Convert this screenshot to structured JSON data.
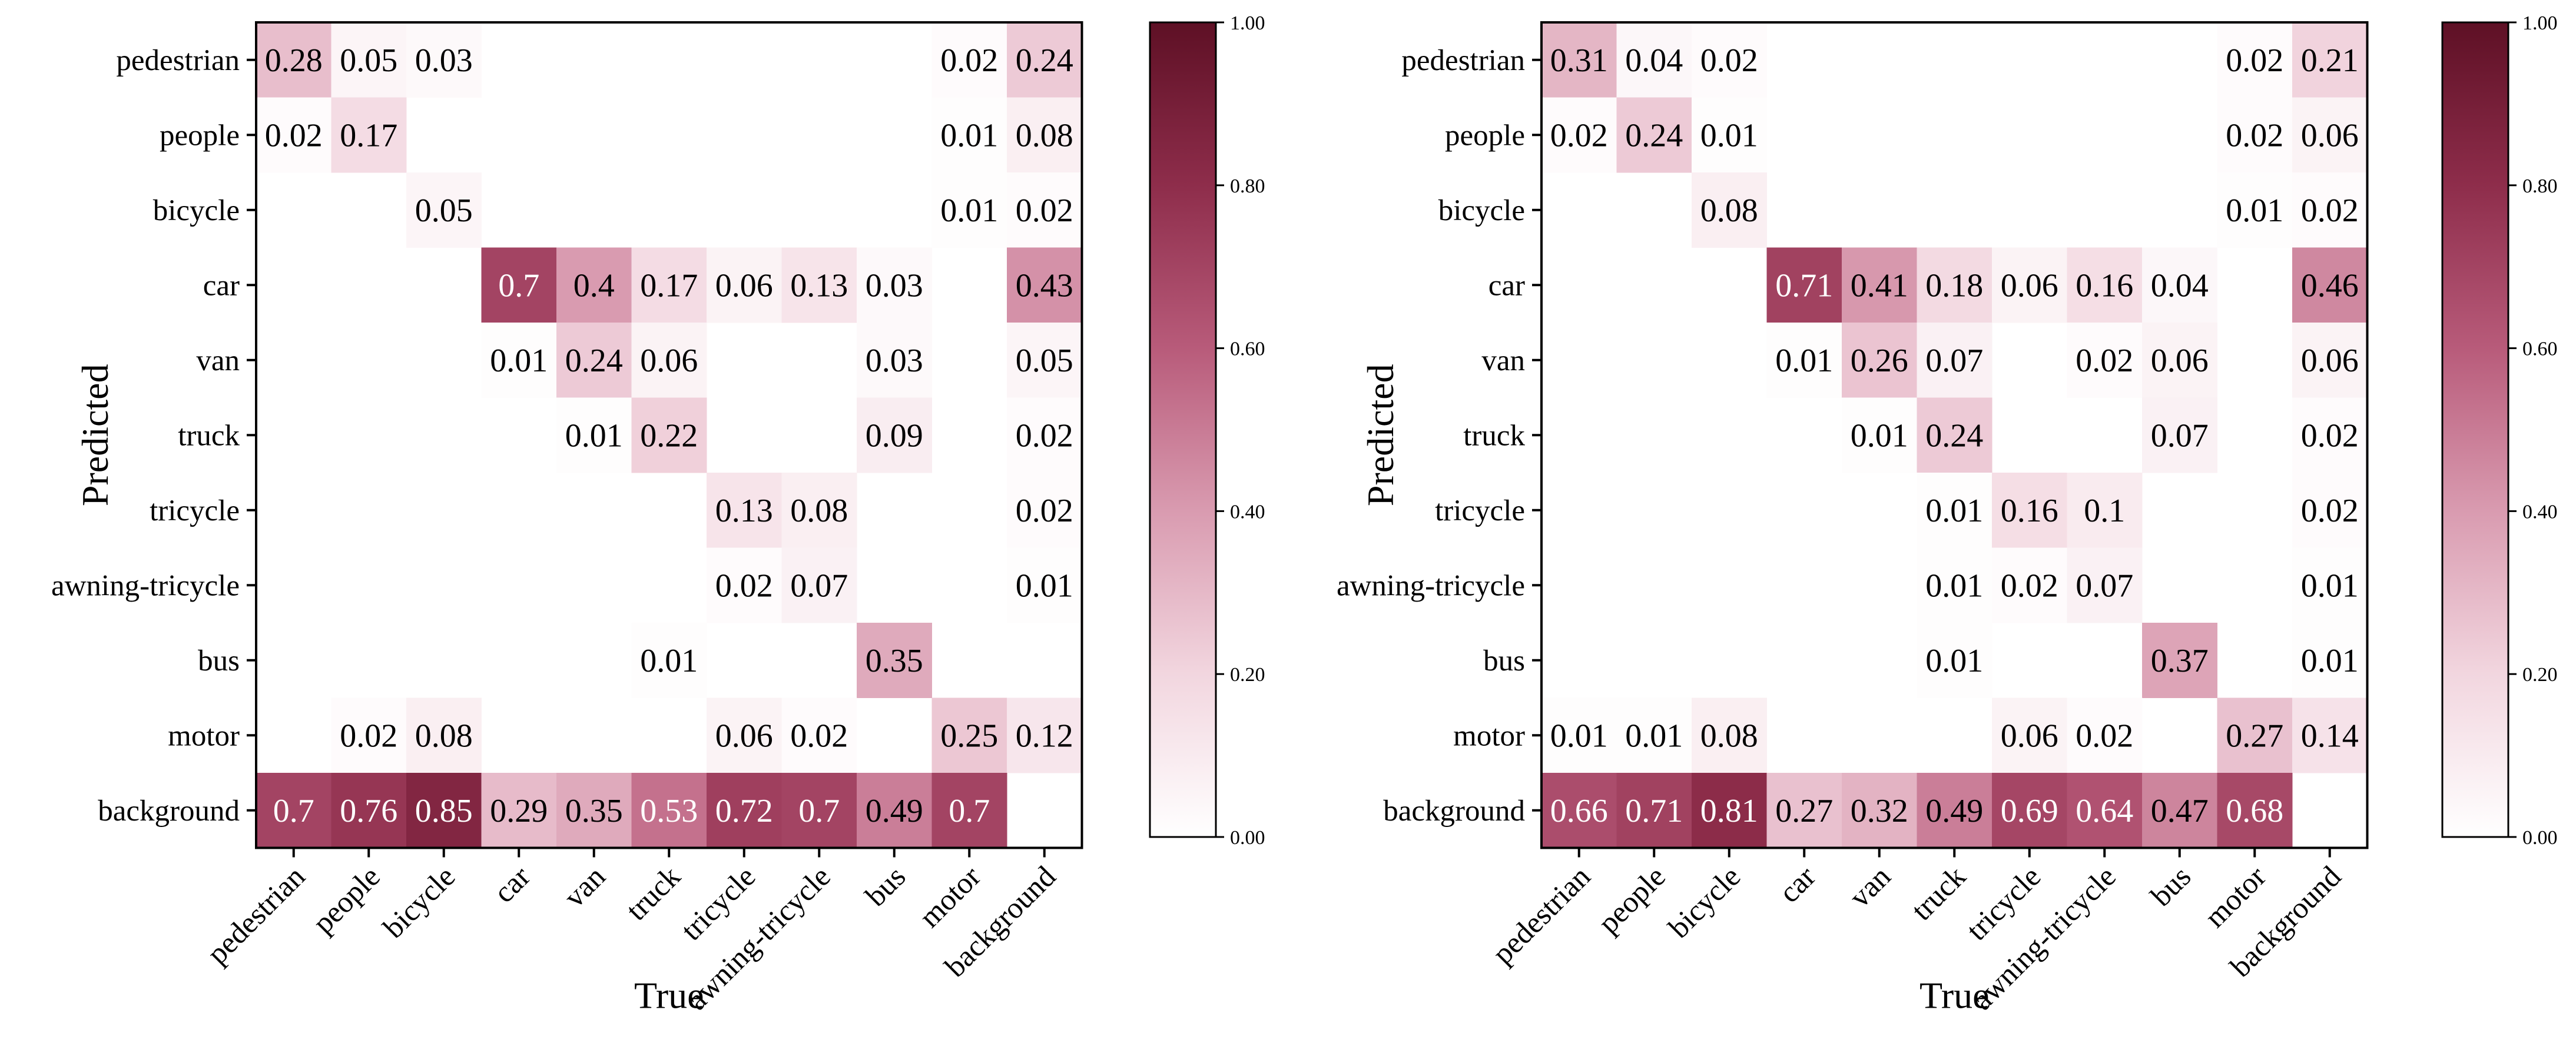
{
  "chart_data": [
    {
      "type": "heatmap",
      "title": "",
      "xlabel": "True",
      "ylabel": "Predicted",
      "x_categories": [
        "pedestrian",
        "people",
        "bicycle",
        "car",
        "van",
        "truck",
        "tricycle",
        "awning-tricycle",
        "bus",
        "motor",
        "background"
      ],
      "y_categories": [
        "pedestrian",
        "people",
        "bicycle",
        "car",
        "van",
        "truck",
        "tricycle",
        "awning-tricycle",
        "bus",
        "motor",
        "background"
      ],
      "values": [
        [
          0.28,
          0.05,
          0.03,
          null,
          null,
          null,
          null,
          null,
          null,
          0.02,
          0.24
        ],
        [
          0.02,
          0.17,
          null,
          null,
          null,
          null,
          null,
          null,
          null,
          0.01,
          0.08
        ],
        [
          null,
          null,
          0.05,
          null,
          null,
          null,
          null,
          null,
          null,
          0.01,
          0.02
        ],
        [
          null,
          null,
          null,
          0.7,
          0.4,
          0.17,
          0.06,
          0.13,
          0.03,
          null,
          0.43
        ],
        [
          null,
          null,
          null,
          0.01,
          0.24,
          0.06,
          null,
          null,
          0.03,
          null,
          0.05
        ],
        [
          null,
          null,
          null,
          null,
          0.01,
          0.22,
          null,
          null,
          0.09,
          null,
          0.02
        ],
        [
          null,
          null,
          null,
          null,
          null,
          null,
          0.13,
          0.08,
          null,
          null,
          0.02
        ],
        [
          null,
          null,
          null,
          null,
          null,
          null,
          0.02,
          0.07,
          null,
          null,
          0.01
        ],
        [
          null,
          null,
          null,
          null,
          null,
          0.01,
          null,
          null,
          0.35,
          null,
          null
        ],
        [
          null,
          0.02,
          0.08,
          null,
          null,
          null,
          0.06,
          0.02,
          null,
          0.25,
          0.12
        ],
        [
          0.7,
          0.76,
          0.85,
          0.29,
          0.35,
          0.53,
          0.72,
          0.7,
          0.49,
          0.7,
          null
        ]
      ],
      "colorbar": {
        "min": 0,
        "max": 1,
        "ticks": [
          "0.00",
          "0.20",
          "0.40",
          "0.60",
          "0.80",
          "1.00"
        ]
      },
      "colormap": [
        "#ffffff",
        "#5e1025"
      ]
    },
    {
      "type": "heatmap",
      "title": "",
      "xlabel": "True",
      "ylabel": "Predicted",
      "x_categories": [
        "pedestrian",
        "people",
        "bicycle",
        "car",
        "van",
        "truck",
        "tricycle",
        "awning-tricycle",
        "bus",
        "motor",
        "background"
      ],
      "y_categories": [
        "pedestrian",
        "people",
        "bicycle",
        "car",
        "van",
        "truck",
        "tricycle",
        "awning-tricycle",
        "bus",
        "motor",
        "background"
      ],
      "values": [
        [
          0.31,
          0.04,
          0.02,
          null,
          null,
          null,
          null,
          null,
          null,
          0.02,
          0.21
        ],
        [
          0.02,
          0.24,
          0.01,
          null,
          null,
          null,
          null,
          null,
          null,
          0.02,
          0.06
        ],
        [
          null,
          null,
          0.08,
          null,
          null,
          null,
          null,
          null,
          null,
          0.01,
          0.02
        ],
        [
          null,
          null,
          null,
          0.71,
          0.41,
          0.18,
          0.06,
          0.16,
          0.04,
          null,
          0.46
        ],
        [
          null,
          null,
          null,
          0.01,
          0.26,
          0.07,
          null,
          0.02,
          0.06,
          null,
          0.06
        ],
        [
          null,
          null,
          null,
          null,
          0.01,
          0.24,
          null,
          null,
          0.07,
          null,
          0.02
        ],
        [
          null,
          null,
          null,
          null,
          null,
          0.01,
          0.16,
          0.1,
          null,
          null,
          0.02
        ],
        [
          null,
          null,
          null,
          null,
          null,
          0.01,
          0.02,
          0.07,
          null,
          null,
          0.01
        ],
        [
          null,
          null,
          null,
          null,
          null,
          0.01,
          null,
          null,
          0.37,
          null,
          0.01
        ],
        [
          0.01,
          0.01,
          0.08,
          null,
          null,
          null,
          0.06,
          0.02,
          null,
          0.27,
          0.14
        ],
        [
          0.66,
          0.71,
          0.81,
          0.27,
          0.32,
          0.49,
          0.69,
          0.64,
          0.47,
          0.68,
          null
        ]
      ],
      "colorbar": {
        "min": 0,
        "max": 1,
        "ticks": [
          "0.00",
          "0.20",
          "0.40",
          "0.60",
          "0.80",
          "1.00"
        ]
      },
      "colormap": [
        "#ffffff",
        "#5e1025"
      ]
    }
  ]
}
